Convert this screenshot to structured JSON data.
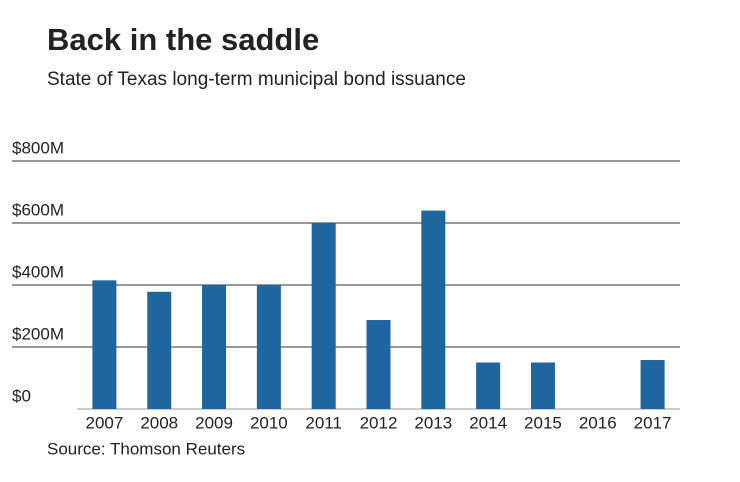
{
  "chart_data": {
    "type": "bar",
    "title": "Back in the saddle",
    "subtitle": "State of Texas long-term municipal bond issuance",
    "source": "Source: Thomson Reuters",
    "categories": [
      "2007",
      "2008",
      "2009",
      "2010",
      "2011",
      "2012",
      "2013",
      "2014",
      "2015",
      "2016",
      "2017"
    ],
    "values": [
      415,
      378,
      400,
      400,
      600,
      287,
      640,
      150,
      150,
      0,
      158
    ],
    "color": "#1f65a0",
    "ylim": [
      0,
      800
    ],
    "yticks": [
      {
        "value": 0,
        "label": "$0"
      },
      {
        "value": 200,
        "label": "$200M"
      },
      {
        "value": 400,
        "label": "$400M"
      },
      {
        "value": 600,
        "label": "$600M"
      },
      {
        "value": 800,
        "label": "$800M"
      }
    ],
    "grid": true
  }
}
